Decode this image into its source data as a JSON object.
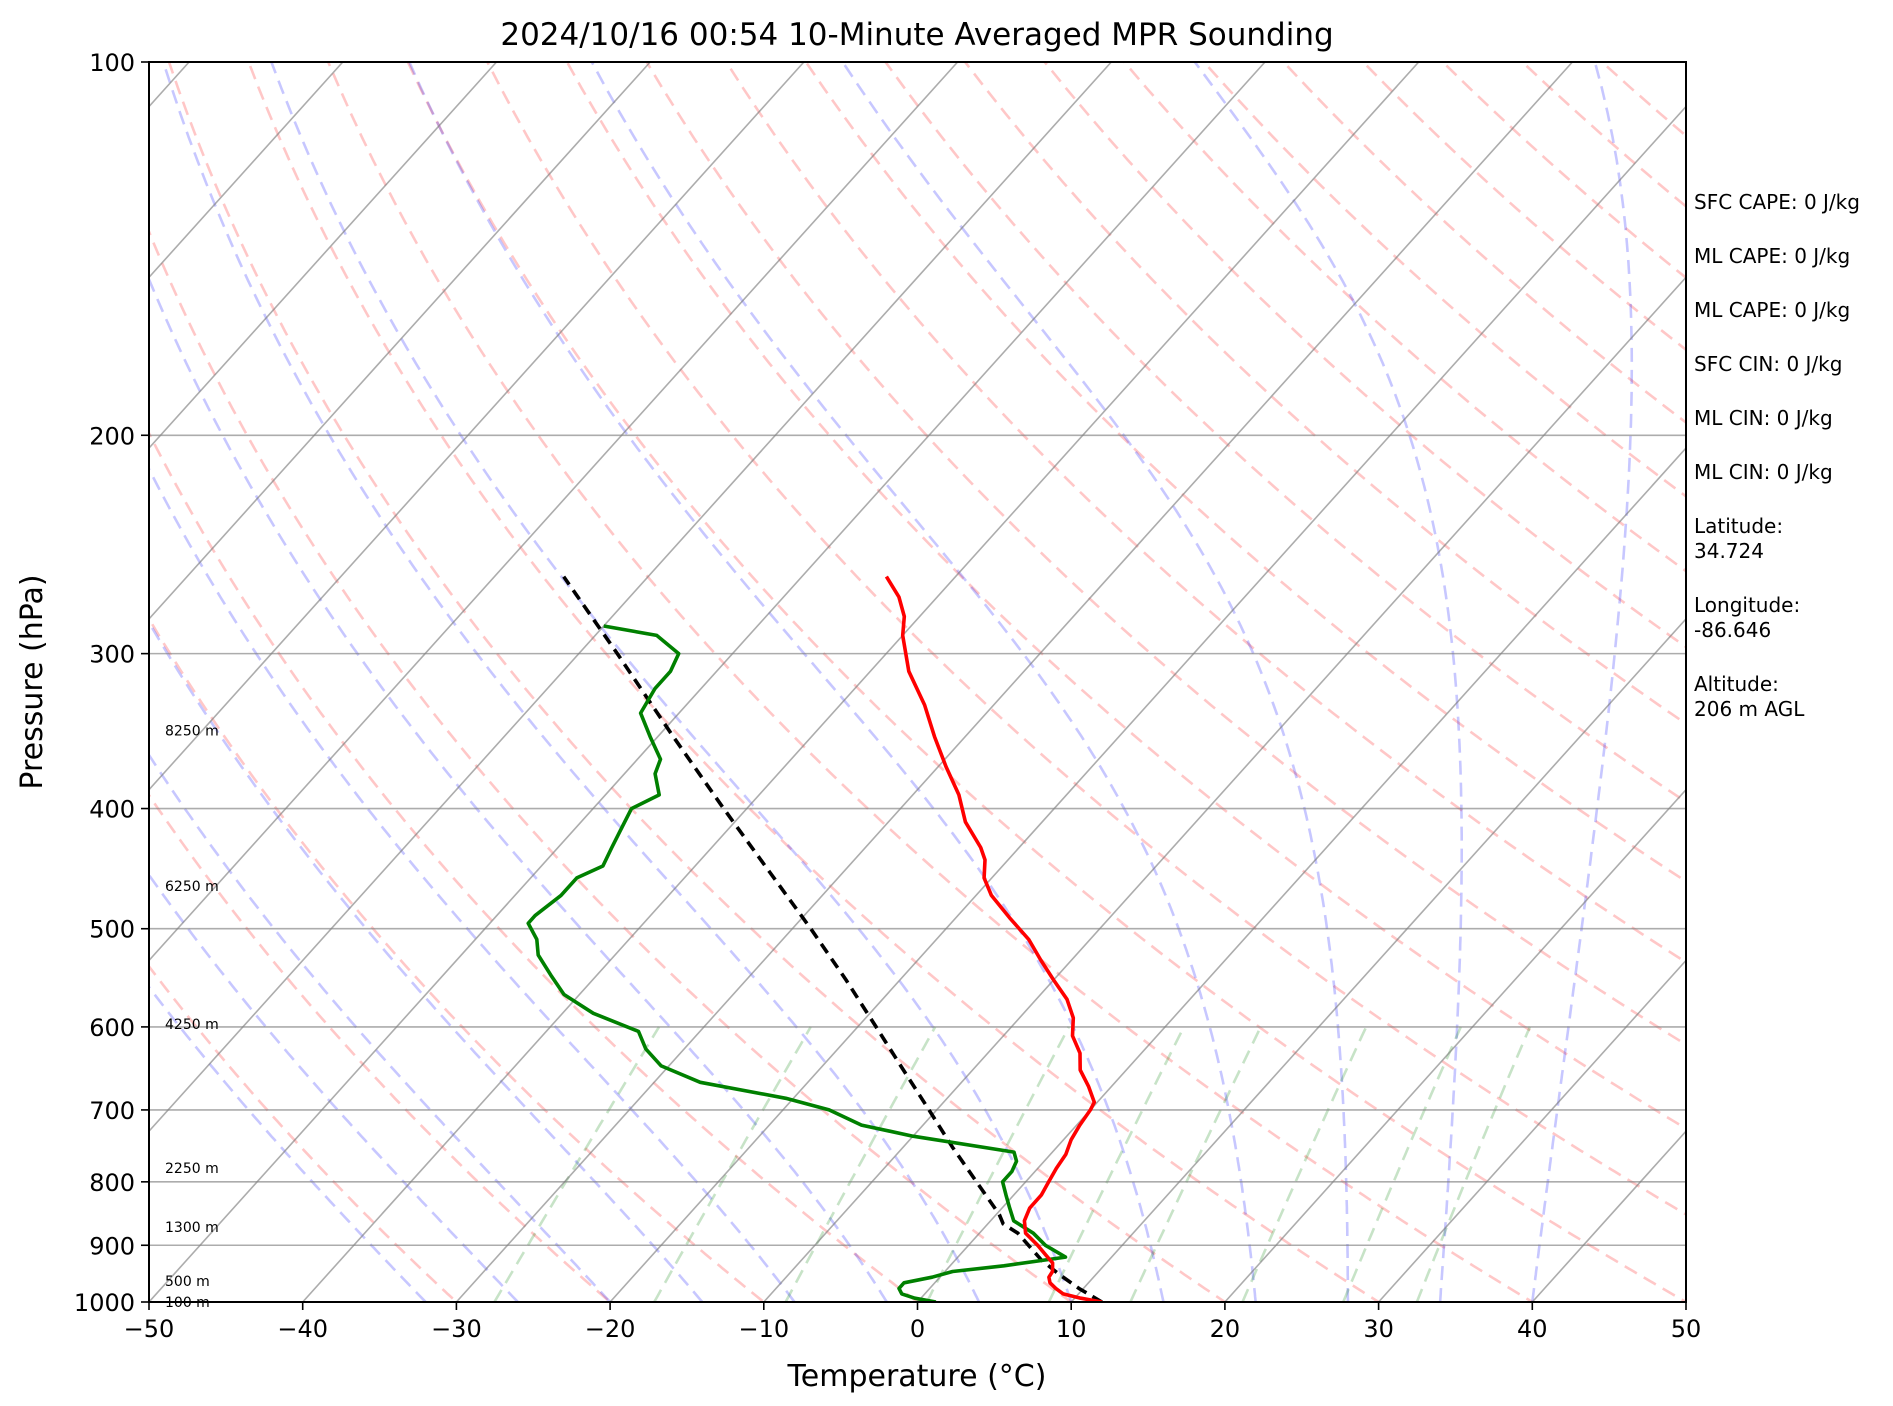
{
  "chart_data": {
    "type": "skew-t",
    "title": "2024/10/16 00:54 10-Minute Averaged MPR Sounding",
    "xlabel": "Temperature (°C)",
    "ylabel": "Pressure (hPa)",
    "xlim": [
      -50,
      50
    ],
    "ylim": [
      1000,
      100
    ],
    "y_scale": "log",
    "x_ticks": [
      -50,
      -40,
      -30,
      -20,
      -10,
      0,
      10,
      20,
      30,
      40,
      50
    ],
    "x_tick_labels": [
      "−50",
      "−40",
      "−30",
      "−20",
      "−10",
      "0",
      "10",
      "20",
      "30",
      "40",
      "50"
    ],
    "y_ticks": [
      100,
      200,
      300,
      400,
      500,
      600,
      700,
      800,
      900,
      1000
    ],
    "y_tick_labels": [
      "100",
      "200",
      "300",
      "400",
      "500",
      "600",
      "700",
      "800",
      "900",
      "1000"
    ],
    "grid": true,
    "height_labels": [
      {
        "p": 1000,
        "label": "100 m"
      },
      {
        "p": 962,
        "label": "500 m"
      },
      {
        "p": 870,
        "label": "1300 m"
      },
      {
        "p": 780,
        "label": "2250 m"
      },
      {
        "p": 597,
        "label": "4250 m"
      },
      {
        "p": 462,
        "label": "6250 m"
      },
      {
        "p": 346,
        "label": "8250 m"
      }
    ],
    "temperature": {
      "color": "#ff0000",
      "points": [
        [
          1000,
          12.0
        ],
        [
          993,
          10.4
        ],
        [
          985,
          9.0
        ],
        [
          975,
          8.2
        ],
        [
          965,
          7.5
        ],
        [
          955,
          7.1
        ],
        [
          945,
          7.0
        ],
        [
          930,
          6.5
        ],
        [
          915,
          5.5
        ],
        [
          900,
          4.5
        ],
        [
          880,
          3.0
        ],
        [
          860,
          2.2
        ],
        [
          840,
          1.8
        ],
        [
          820,
          1.8
        ],
        [
          800,
          1.5
        ],
        [
          780,
          1.2
        ],
        [
          760,
          1.0
        ],
        [
          740,
          0.5
        ],
        [
          720,
          0.2
        ],
        [
          700,
          0.0
        ],
        [
          690,
          -0.2
        ],
        [
          670,
          -1.5
        ],
        [
          650,
          -3.0
        ],
        [
          630,
          -4.0
        ],
        [
          610,
          -5.5
        ],
        [
          590,
          -6.5
        ],
        [
          570,
          -8.0
        ],
        [
          550,
          -10.0
        ],
        [
          530,
          -12.0
        ],
        [
          510,
          -14.0
        ],
        [
          490,
          -16.5
        ],
        [
          470,
          -19.0
        ],
        [
          455,
          -20.5
        ],
        [
          440,
          -21.5
        ],
        [
          430,
          -22.5
        ],
        [
          410,
          -25.0
        ],
        [
          390,
          -27.0
        ],
        [
          370,
          -29.5
        ],
        [
          350,
          -32.0
        ],
        [
          330,
          -34.5
        ],
        [
          310,
          -37.5
        ],
        [
          290,
          -40.0
        ],
        [
          280,
          -41.0
        ],
        [
          270,
          -42.5
        ],
        [
          260,
          -44.5
        ]
      ]
    },
    "dewpoint": {
      "color": "#008000",
      "points": [
        [
          1000,
          1.2
        ],
        [
          993,
          -0.4
        ],
        [
          985,
          -1.5
        ],
        [
          975,
          -2.0
        ],
        [
          965,
          -2.0
        ],
        [
          955,
          -0.5
        ],
        [
          945,
          0.5
        ],
        [
          935,
          3.5
        ],
        [
          920,
          7.0
        ],
        [
          900,
          5.0
        ],
        [
          880,
          3.5
        ],
        [
          860,
          1.5
        ],
        [
          840,
          0.5
        ],
        [
          820,
          -0.5
        ],
        [
          800,
          -1.5
        ],
        [
          785,
          -1.5
        ],
        [
          770,
          -1.8
        ],
        [
          757,
          -2.5
        ],
        [
          735,
          -10.0
        ],
        [
          720,
          -14.0
        ],
        [
          700,
          -17.0
        ],
        [
          685,
          -20.5
        ],
        [
          665,
          -27.0
        ],
        [
          645,
          -30.5
        ],
        [
          625,
          -32.5
        ],
        [
          605,
          -34.0
        ],
        [
          585,
          -38.0
        ],
        [
          565,
          -41.0
        ],
        [
          545,
          -43.0
        ],
        [
          525,
          -45.0
        ],
        [
          510,
          -46.0
        ],
        [
          495,
          -47.5
        ],
        [
          488,
          -47.5
        ],
        [
          470,
          -47.0
        ],
        [
          455,
          -47.0
        ],
        [
          445,
          -46.0
        ],
        [
          430,
          -46.5
        ],
        [
          415,
          -47.0
        ],
        [
          400,
          -47.5
        ],
        [
          390,
          -46.5
        ],
        [
          375,
          -48.0
        ],
        [
          365,
          -48.5
        ],
        [
          350,
          -50.5
        ],
        [
          335,
          -52.5
        ],
        [
          320,
          -53.0
        ],
        [
          310,
          -53.0
        ],
        [
          300,
          -53.5
        ],
        [
          290,
          -56.0
        ],
        [
          285,
          -60.0
        ]
      ]
    },
    "parcel_path": {
      "color": "#000000",
      "points": [
        [
          1000,
          12.0
        ],
        [
          975,
          9.7
        ],
        [
          950,
          7.6
        ],
        [
          925,
          5.6
        ],
        [
          900,
          3.9
        ],
        [
          880,
          2.5
        ],
        [
          865,
          1.0
        ],
        [
          850,
          0.2
        ],
        [
          800,
          -3.2
        ],
        [
          750,
          -6.8
        ],
        [
          700,
          -10.5
        ],
        [
          650,
          -14.5
        ],
        [
          600,
          -18.8
        ],
        [
          550,
          -23.5
        ],
        [
          500,
          -28.8
        ],
        [
          450,
          -34.8
        ],
        [
          400,
          -41.5
        ],
        [
          350,
          -49.0
        ],
        [
          300,
          -57.5
        ],
        [
          260,
          -65.5
        ]
      ]
    }
  },
  "stats": {
    "sfc_cape": "SFC CAPE: 0 J/kg",
    "ml_cape_1": "ML CAPE: 0 J/kg",
    "ml_cape_2": "ML CAPE: 0 J/kg",
    "sfc_cin": "SFC CIN: 0 J/kg",
    "ml_cin_1": "ML CIN: 0 J/kg",
    "ml_cin_2": "ML CIN: 0 J/kg",
    "latitude": "Latitude:\n34.724",
    "longitude": "Longitude:\n-86.646",
    "altitude": "Altitude:\n206 m AGL"
  }
}
